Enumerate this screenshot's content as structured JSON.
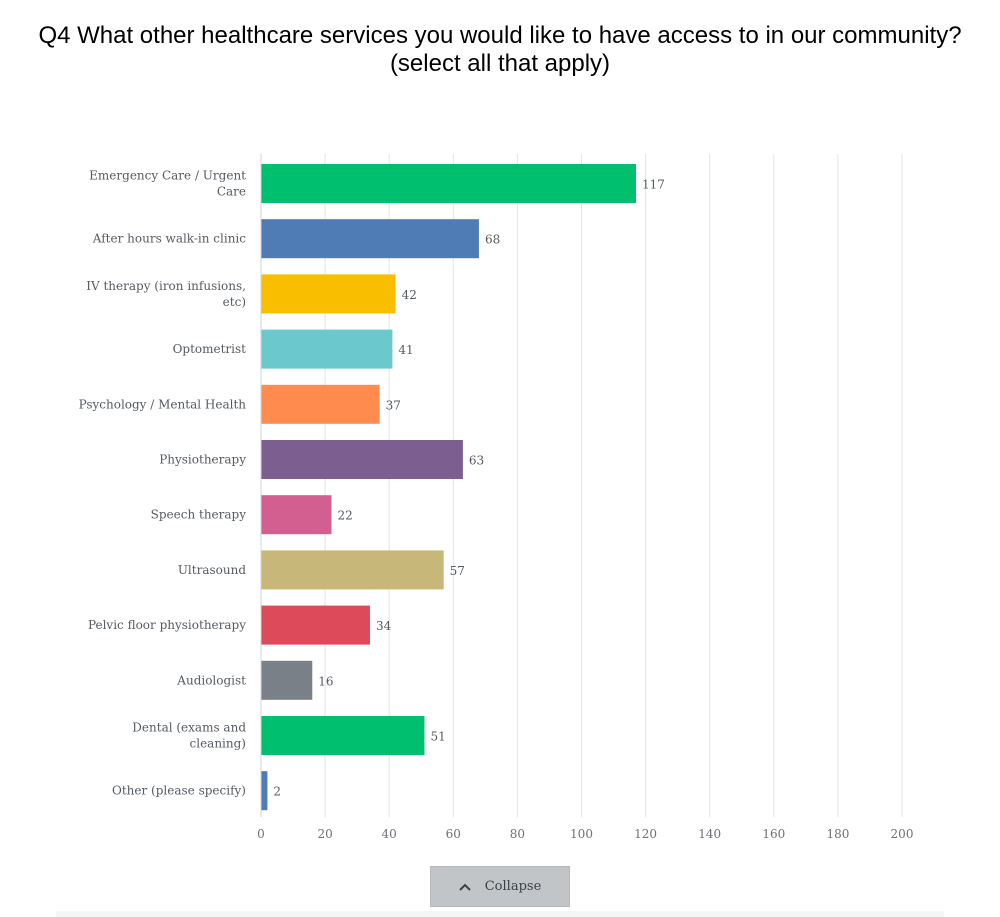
{
  "question_title_line1": "Q4 What other healthcare services you would like to have access to in our community?",
  "question_title_line2": "(select all that apply)",
  "collapse_label": "Collapse",
  "collapse_icon": "chevron-up-icon",
  "chart_data": {
    "type": "bar",
    "orientation": "horizontal",
    "title": "Q4 What other healthcare services you would like to have access to in our community? (select all that apply)",
    "xlabel": "",
    "ylabel": "",
    "xlim": [
      0,
      200
    ],
    "x_ticks": [
      "0",
      "20",
      "40",
      "60",
      "80",
      "100",
      "120",
      "140",
      "160",
      "180",
      "200"
    ],
    "grid": true,
    "categories": [
      [
        "Emergency Care / Urgent",
        "Care"
      ],
      [
        "After hours walk-in clinic"
      ],
      [
        "IV therapy (iron infusions,",
        "etc)"
      ],
      [
        "Optometrist"
      ],
      [
        "Psychology / Mental Health"
      ],
      [
        "Physiotherapy"
      ],
      [
        "Speech therapy"
      ],
      [
        "Ultrasound"
      ],
      [
        "Pelvic floor physiotherapy"
      ],
      [
        "Audiologist"
      ],
      [
        "Dental (exams and",
        "cleaning)"
      ],
      [
        "Other (please specify)"
      ]
    ],
    "values": [
      117,
      68,
      42,
      41,
      37,
      63,
      22,
      57,
      34,
      16,
      51,
      2
    ],
    "colors": [
      "#00bf6f",
      "#507cb6",
      "#f9be00",
      "#6bc8cd",
      "#ff8b4f",
      "#7d5e90",
      "#d25f90",
      "#c7b879",
      "#dd4b5a",
      "#7a8087",
      "#00bf6f",
      "#507cb6"
    ]
  }
}
